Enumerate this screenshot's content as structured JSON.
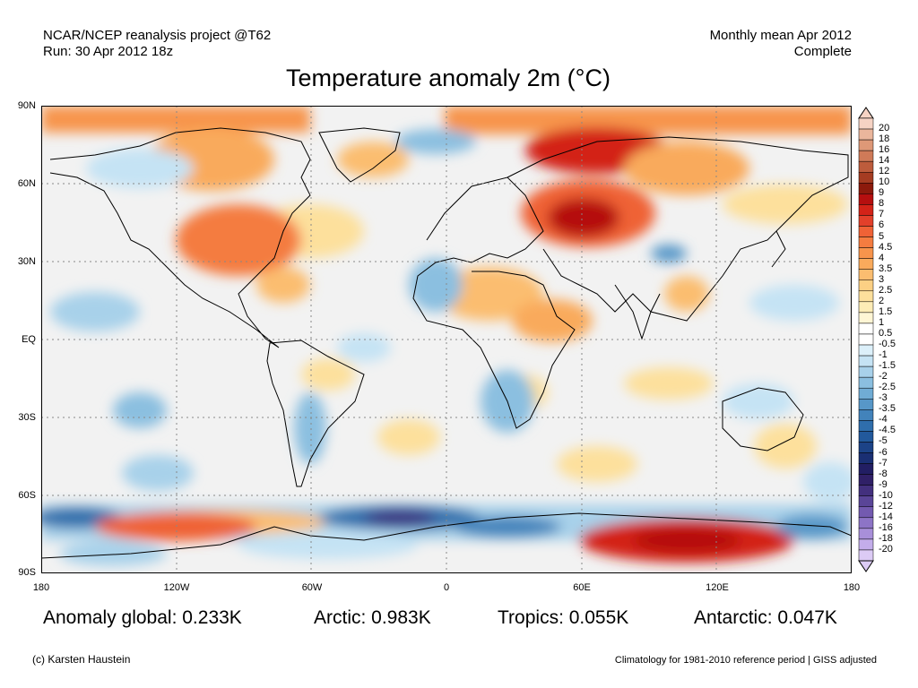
{
  "header": {
    "left_line1": "NCAR/NCEP reanalysis project @T62",
    "left_line2": "Run: 30 Apr 2012 18z",
    "right_line1": "Monthly mean Apr 2012",
    "right_line2": "Complete"
  },
  "title": "Temperature anomaly 2m (°C)",
  "map": {
    "lat_labels": [
      "90N",
      "60N",
      "30N",
      "EQ",
      "30S",
      "60S",
      "90S"
    ],
    "lon_labels": [
      "180",
      "120W",
      "60W",
      "0",
      "60E",
      "120E",
      "180"
    ],
    "grid": "dotted"
  },
  "colorbar": {
    "labels": [
      "20",
      "18",
      "16",
      "14",
      "12",
      "10",
      "9",
      "8",
      "7",
      "6",
      "5",
      "4.5",
      "4",
      "3.5",
      "3",
      "2.5",
      "2",
      "1.5",
      "1",
      "0.5",
      "-0.5",
      "-1",
      "-1.5",
      "-2",
      "-2.5",
      "-3",
      "-3.5",
      "-4",
      "-4.5",
      "-5",
      "-6",
      "-7",
      "-8",
      "-9",
      "-10",
      "-12",
      "-14",
      "-16",
      "-18",
      "-20"
    ],
    "colors": [
      "#f6d3c4",
      "#eab69c",
      "#de9877",
      "#cf7a58",
      "#bd5c3c",
      "#a53c22",
      "#8c1a0c",
      "#b50f0f",
      "#d32318",
      "#e2402a",
      "#ef6236",
      "#f47c40",
      "#f7944c",
      "#f9aa5c",
      "#fbbd70",
      "#fcd084",
      "#fde09c",
      "#feecb6",
      "#fff6d5",
      "#ffffff",
      "#ffffff",
      "#dcf0fa",
      "#c5e3f4",
      "#a8d1ea",
      "#8bbfe0",
      "#70acd5",
      "#5797c8",
      "#4283bb",
      "#2f6eac",
      "#22599c",
      "#1c4387",
      "#1a2f73",
      "#221e63",
      "#302067",
      "#43307e",
      "#5a4598",
      "#735ab0",
      "#8d74c6",
      "#a88fd9",
      "#c3adea",
      "#dccbf5"
    ]
  },
  "stats": {
    "global": "Anomaly global: 0.233K",
    "arctic": "Arctic: 0.983K",
    "tropics": "Tropics: 0.055K",
    "antarctic": "Antarctic: 0.047K"
  },
  "footer": {
    "credit": "(c) Karsten Haustein",
    "note": "Climatology for 1981-2010 reference period | GISS adjusted"
  }
}
